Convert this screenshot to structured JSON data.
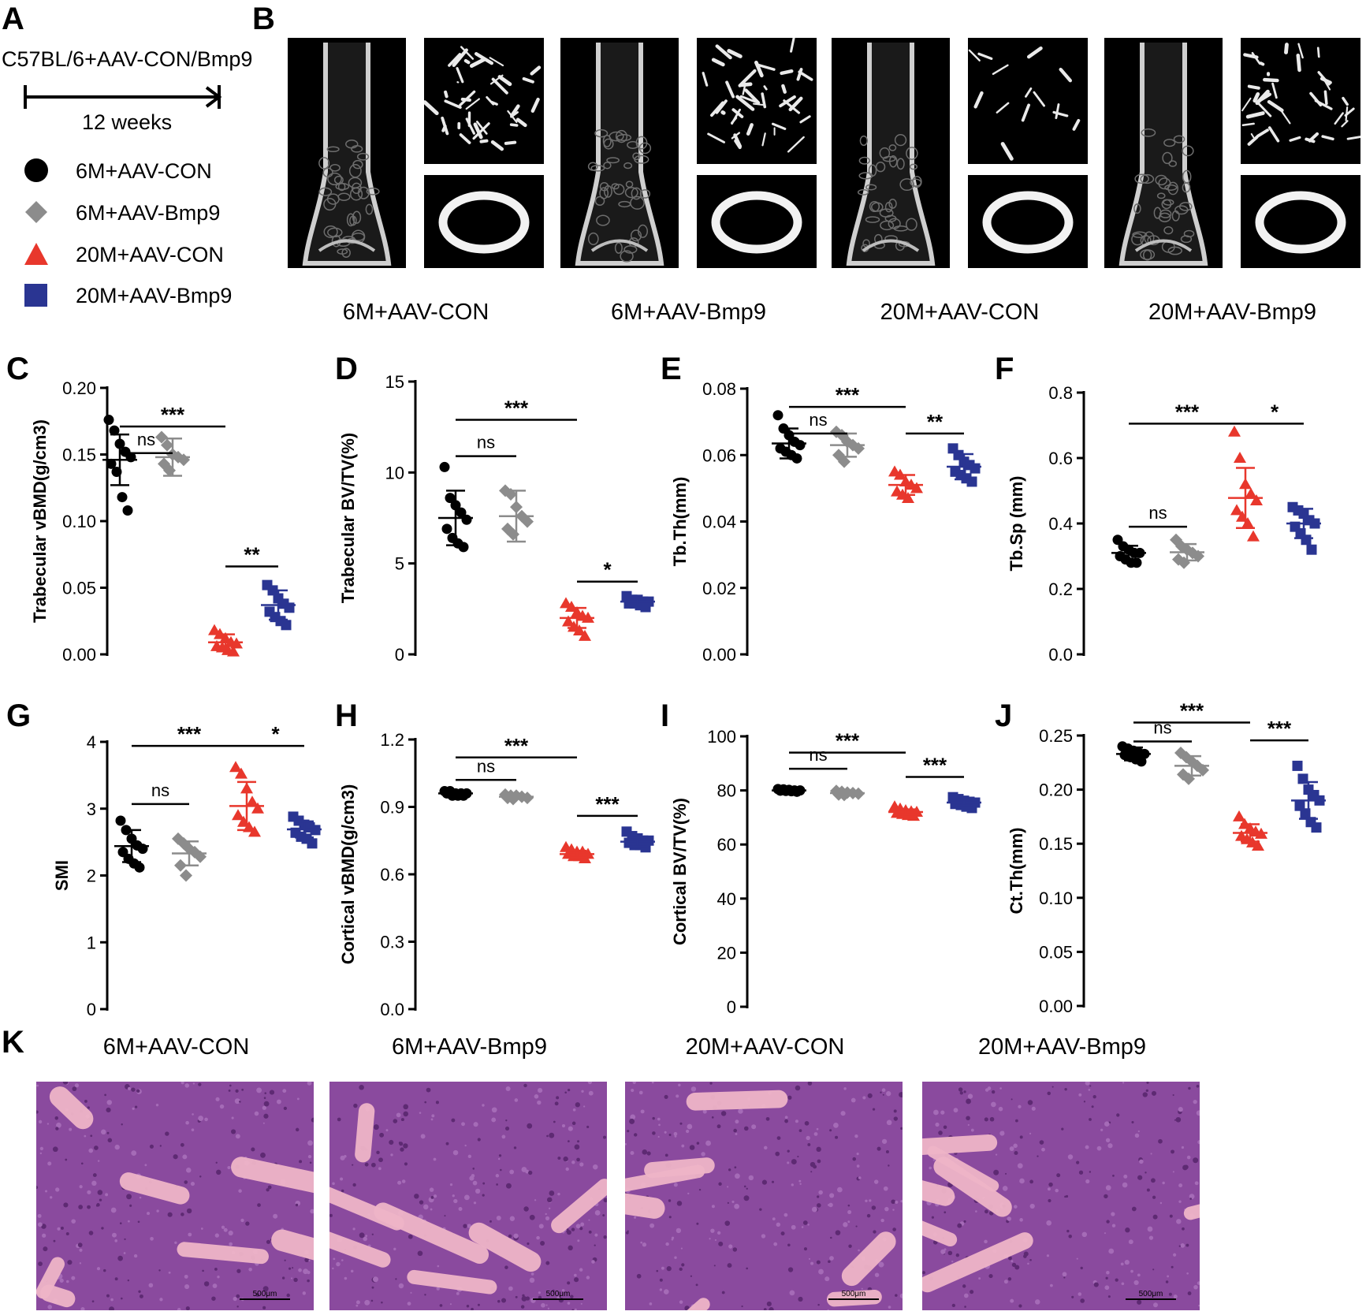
{
  "panel_a": {
    "label": "A",
    "timeline_title": "C57BL/6+AAV-CON/Bmp9",
    "timeline_duration": "12 weeks"
  },
  "legend": [
    {
      "label": "6M+AAV-CON",
      "marker": "circle",
      "color": "#000000"
    },
    {
      "label": "6M+AAV-Bmp9",
      "marker": "diamond",
      "color": "#8c8c8c"
    },
    {
      "label": "20M+AAV-CON",
      "marker": "triangle",
      "color": "#e8372c"
    },
    {
      "label": "20M+AAV-Bmp9",
      "marker": "square",
      "color": "#2a3592"
    }
  ],
  "panel_b": {
    "label": "B",
    "captions": [
      "6M+AAV-CON",
      "6M+AAV-Bmp9",
      "20M+AAV-CON",
      "20M+AAV-Bmp9"
    ]
  },
  "panel_k": {
    "label": "K",
    "captions": [
      "6M+AAV-CON",
      "6M+AAV-Bmp9",
      "20M+AAV-CON",
      "20M+AAV-Bmp9"
    ],
    "scale_bar": "500μm"
  },
  "chart_data": [
    {
      "panel": "C",
      "type": "scatter",
      "ylabel": "Trabecular vBMD(g/cm3)",
      "ylim": [
        0,
        0.2
      ],
      "yticks": [
        "0.00",
        "0.05",
        "0.10",
        "0.15",
        "0.20"
      ],
      "groups": [
        {
          "mean": 0.146,
          "sd": 0.019,
          "points": [
            0.176,
            0.168,
            0.158,
            0.152,
            0.148,
            0.143,
            0.137,
            0.118,
            0.108
          ]
        },
        {
          "mean": 0.148,
          "sd": 0.014,
          "points": [
            0.163,
            0.157,
            0.15,
            0.148,
            0.146,
            0.143,
            0.138
          ]
        },
        {
          "mean": 0.009,
          "sd": 0.006,
          "points": [
            0.018,
            0.015,
            0.012,
            0.009,
            0.008,
            0.006,
            0.005,
            0.003,
            0.002
          ]
        },
        {
          "mean": 0.037,
          "sd": 0.011,
          "points": [
            0.052,
            0.048,
            0.042,
            0.038,
            0.035,
            0.032,
            0.028,
            0.025,
            0.022
          ]
        }
      ],
      "comparisons": [
        {
          "from": 0,
          "to": 2,
          "y": 0.171,
          "label": "***"
        },
        {
          "from": 0,
          "to": 1,
          "y": 0.151,
          "label": "ns"
        },
        {
          "from": 2,
          "to": 3,
          "y": 0.066,
          "label": "**"
        }
      ]
    },
    {
      "panel": "D",
      "type": "scatter",
      "ylabel": "Trabecular BV/TV(%)",
      "ylim": [
        0,
        15
      ],
      "yticks": [
        "0",
        "5",
        "10",
        "15"
      ],
      "groups": [
        {
          "mean": 7.5,
          "sd": 1.5,
          "points": [
            10.3,
            8.6,
            8.2,
            7.8,
            7.4,
            6.9,
            6.4,
            6.1,
            5.9
          ]
        },
        {
          "mean": 7.6,
          "sd": 1.4,
          "points": [
            9.0,
            8.8,
            8.1,
            7.6,
            7.3,
            6.9,
            6.6
          ]
        },
        {
          "mean": 2.0,
          "sd": 0.55,
          "points": [
            2.8,
            2.6,
            2.3,
            2.1,
            2.0,
            1.8,
            1.5,
            1.3,
            1.0
          ]
        },
        {
          "mean": 2.9,
          "sd": 0.2,
          "points": [
            3.2,
            3.0,
            3.0,
            2.9,
            2.9,
            2.8,
            2.8,
            2.7,
            2.6
          ]
        }
      ],
      "comparisons": [
        {
          "from": 0,
          "to": 2,
          "y": 12.9,
          "label": "***"
        },
        {
          "from": 0,
          "to": 1,
          "y": 10.9,
          "label": "ns"
        },
        {
          "from": 2,
          "to": 3,
          "y": 4.0,
          "label": "*"
        }
      ]
    },
    {
      "panel": "E",
      "type": "scatter",
      "ylabel": "Tb.Th(mm)",
      "ylim": [
        0,
        0.08
      ],
      "yticks": [
        "0.00",
        "0.02",
        "0.04",
        "0.06",
        "0.08"
      ],
      "groups": [
        {
          "mean": 0.0635,
          "sd": 0.0045,
          "points": [
            0.072,
            0.068,
            0.066,
            0.064,
            0.063,
            0.062,
            0.061,
            0.06,
            0.059
          ]
        },
        {
          "mean": 0.063,
          "sd": 0.0035,
          "points": [
            0.067,
            0.066,
            0.064,
            0.063,
            0.062,
            0.06,
            0.058
          ]
        },
        {
          "mean": 0.051,
          "sd": 0.003,
          "points": [
            0.055,
            0.054,
            0.052,
            0.051,
            0.05,
            0.049,
            0.048,
            0.047
          ]
        },
        {
          "mean": 0.0565,
          "sd": 0.0038,
          "points": [
            0.062,
            0.06,
            0.058,
            0.057,
            0.056,
            0.055,
            0.054,
            0.053,
            0.052
          ]
        }
      ],
      "comparisons": [
        {
          "from": 0,
          "to": 2,
          "y": 0.0745,
          "label": "***"
        },
        {
          "from": 0,
          "to": 1,
          "y": 0.0665,
          "label": "ns"
        },
        {
          "from": 2,
          "to": 3,
          "y": 0.0665,
          "label": "**"
        }
      ]
    },
    {
      "panel": "F",
      "type": "scatter",
      "ylabel": "Tb.Sp (mm)",
      "ylim": [
        0,
        0.8
      ],
      "yticks": [
        "0.0",
        "0.2",
        "0.4",
        "0.6",
        "0.8"
      ],
      "groups": [
        {
          "mean": 0.31,
          "sd": 0.022,
          "points": [
            0.35,
            0.33,
            0.32,
            0.31,
            0.31,
            0.3,
            0.29,
            0.28,
            0.28
          ]
        },
        {
          "mean": 0.312,
          "sd": 0.025,
          "points": [
            0.35,
            0.33,
            0.32,
            0.31,
            0.3,
            0.29,
            0.28
          ]
        },
        {
          "mean": 0.478,
          "sd": 0.092,
          "points": [
            0.68,
            0.6,
            0.52,
            0.49,
            0.47,
            0.44,
            0.42,
            0.4,
            0.36
          ]
        },
        {
          "mean": 0.4,
          "sd": 0.045,
          "points": [
            0.45,
            0.44,
            0.43,
            0.41,
            0.4,
            0.39,
            0.37,
            0.35,
            0.32
          ]
        }
      ],
      "comparisons": [
        {
          "from": 0,
          "to": 2,
          "y": 0.705,
          "label": "***"
        },
        {
          "from": 2,
          "to": 3,
          "y": 0.705,
          "label": "*"
        },
        {
          "from": 0,
          "to": 1,
          "y": 0.39,
          "label": "ns"
        }
      ]
    },
    {
      "panel": "G",
      "type": "scatter",
      "ylabel": "SMI",
      "ylim": [
        0,
        4
      ],
      "yticks": [
        "0",
        "1",
        "2",
        "3",
        "4"
      ],
      "groups": [
        {
          "mean": 2.44,
          "sd": 0.24,
          "points": [
            2.82,
            2.68,
            2.55,
            2.45,
            2.4,
            2.35,
            2.25,
            2.18,
            2.12
          ]
        },
        {
          "mean": 2.33,
          "sd": 0.18,
          "points": [
            2.55,
            2.48,
            2.4,
            2.35,
            2.28,
            2.15,
            2.0
          ]
        },
        {
          "mean": 3.04,
          "sd": 0.36,
          "points": [
            3.62,
            3.52,
            3.3,
            3.1,
            3.0,
            2.9,
            2.8,
            2.72,
            2.65
          ]
        },
        {
          "mean": 2.69,
          "sd": 0.12,
          "points": [
            2.88,
            2.82,
            2.76,
            2.72,
            2.68,
            2.64,
            2.58,
            2.55,
            2.48
          ]
        }
      ],
      "comparisons": [
        {
          "from": 0,
          "to": 2,
          "y": 3.94,
          "label": "***"
        },
        {
          "from": 2,
          "to": 3,
          "y": 3.94,
          "label": "*"
        },
        {
          "from": 0,
          "to": 1,
          "y": 3.07,
          "label": "ns"
        }
      ]
    },
    {
      "panel": "H",
      "type": "scatter",
      "ylabel": "Cortical vBMD(g/cm3)",
      "ylim": [
        0,
        1.2
      ],
      "yticks": [
        "0.0",
        "0.3",
        "0.6",
        "0.9",
        "1.2"
      ],
      "groups": [
        {
          "mean": 0.96,
          "sd": 0.01,
          "points": [
            0.97,
            0.97,
            0.96,
            0.96,
            0.96,
            0.96,
            0.95,
            0.95,
            0.95
          ]
        },
        {
          "mean": 0.945,
          "sd": 0.008,
          "points": [
            0.955,
            0.95,
            0.95,
            0.945,
            0.94,
            0.94,
            0.935
          ]
        },
        {
          "mean": 0.69,
          "sd": 0.015,
          "points": [
            0.72,
            0.71,
            0.7,
            0.7,
            0.69,
            0.69,
            0.68,
            0.68,
            0.67
          ]
        },
        {
          "mean": 0.745,
          "sd": 0.02,
          "points": [
            0.79,
            0.77,
            0.76,
            0.75,
            0.75,
            0.74,
            0.73,
            0.73,
            0.72
          ]
        }
      ],
      "comparisons": [
        {
          "from": 0,
          "to": 2,
          "y": 1.12,
          "label": "***"
        },
        {
          "from": 0,
          "to": 1,
          "y": 1.02,
          "label": "ns"
        },
        {
          "from": 2,
          "to": 3,
          "y": 0.86,
          "label": "***"
        }
      ]
    },
    {
      "panel": "I",
      "type": "scatter",
      "ylabel": "Cortical BV/TV(%)",
      "ylim": [
        0,
        100
      ],
      "yticks": [
        "0",
        "20",
        "40",
        "60",
        "80",
        "100"
      ],
      "groups": [
        {
          "mean": 80,
          "sd": 0.5,
          "points": [
            80.5,
            80.4,
            80.2,
            80.0,
            80.0,
            79.9,
            79.8,
            79.7,
            79.5
          ]
        },
        {
          "mean": 79,
          "sd": 0.6,
          "points": [
            79.8,
            79.5,
            79.2,
            79.0,
            78.8,
            78.5,
            78.3
          ]
        },
        {
          "mean": 72,
          "sd": 1.0,
          "points": [
            74.0,
            73.2,
            72.6,
            72.2,
            72.0,
            71.6,
            71.2,
            70.8,
            70.5
          ]
        },
        {
          "mean": 75.5,
          "sd": 1.2,
          "points": [
            77.5,
            76.8,
            76.2,
            75.8,
            75.5,
            75.0,
            74.6,
            74.0,
            73.5
          ]
        }
      ],
      "comparisons": [
        {
          "from": 0,
          "to": 2,
          "y": 94,
          "label": "***"
        },
        {
          "from": 0,
          "to": 1,
          "y": 88,
          "label": "ns"
        },
        {
          "from": 2,
          "to": 3,
          "y": 85,
          "label": "***"
        }
      ]
    },
    {
      "panel": "J",
      "type": "scatter",
      "ylabel": "Ct.Th(mm)",
      "ylim": [
        0,
        0.25
      ],
      "yticks": [
        "0.00",
        "0.05",
        "0.10",
        "0.15",
        "0.20",
        "0.25"
      ],
      "groups": [
        {
          "mean": 0.233,
          "sd": 0.006,
          "points": [
            0.24,
            0.238,
            0.236,
            0.234,
            0.233,
            0.232,
            0.23,
            0.228,
            0.226
          ]
        },
        {
          "mean": 0.222,
          "sd": 0.009,
          "points": [
            0.234,
            0.23,
            0.226,
            0.222,
            0.218,
            0.214,
            0.21
          ]
        },
        {
          "mean": 0.16,
          "sd": 0.008,
          "points": [
            0.175,
            0.168,
            0.164,
            0.161,
            0.159,
            0.157,
            0.154,
            0.151,
            0.148
          ]
        },
        {
          "mean": 0.19,
          "sd": 0.017,
          "points": [
            0.222,
            0.21,
            0.2,
            0.195,
            0.19,
            0.185,
            0.178,
            0.17,
            0.165
          ]
        }
      ],
      "comparisons": [
        {
          "from": 0,
          "to": 2,
          "y": 0.262,
          "label": "***"
        },
        {
          "from": 0,
          "to": 1,
          "y": 0.2445,
          "label": "ns"
        },
        {
          "from": 2,
          "to": 3,
          "y": 0.2455,
          "label": "***"
        }
      ]
    }
  ]
}
